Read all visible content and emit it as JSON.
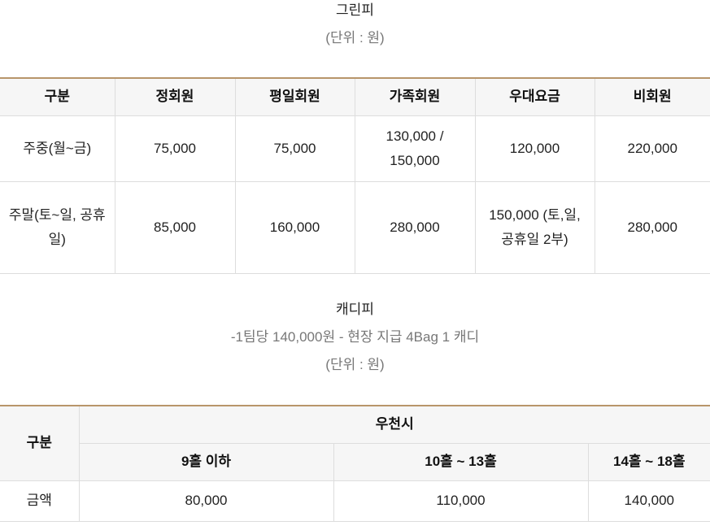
{
  "green_fee": {
    "title": "그린피",
    "unit": "(단위 : 원)",
    "headers": [
      "구분",
      "정회원",
      "평일회원",
      "가족회원",
      "우대요금",
      "비회원"
    ],
    "rows": [
      [
        "주중(월~금)",
        "75,000",
        "75,000",
        "130,000 / 150,000",
        "120,000",
        "220,000"
      ],
      [
        "주말(토~일, 공휴일)",
        "85,000",
        "160,000",
        "280,000",
        "150,000 (토,일, 공휴일 2부)",
        "280,000"
      ]
    ]
  },
  "caddie_fee": {
    "title": "캐디피",
    "note": "-1팀당 140,000원 - 현장 지급 4Bag 1 캐디",
    "unit": "(단위 : 원)",
    "header_category": "구분",
    "header_group": "우천시",
    "subheaders": [
      "9홀 이하",
      "10홀 ~ 13홀",
      "14홀 ~ 18홀"
    ],
    "row_label": "금액",
    "values": [
      "80,000",
      "110,000",
      "140,000"
    ]
  },
  "colors": {
    "table_top_border": "#b8956a",
    "header_bg": "#f6f6f6",
    "muted_text": "#777777"
  }
}
